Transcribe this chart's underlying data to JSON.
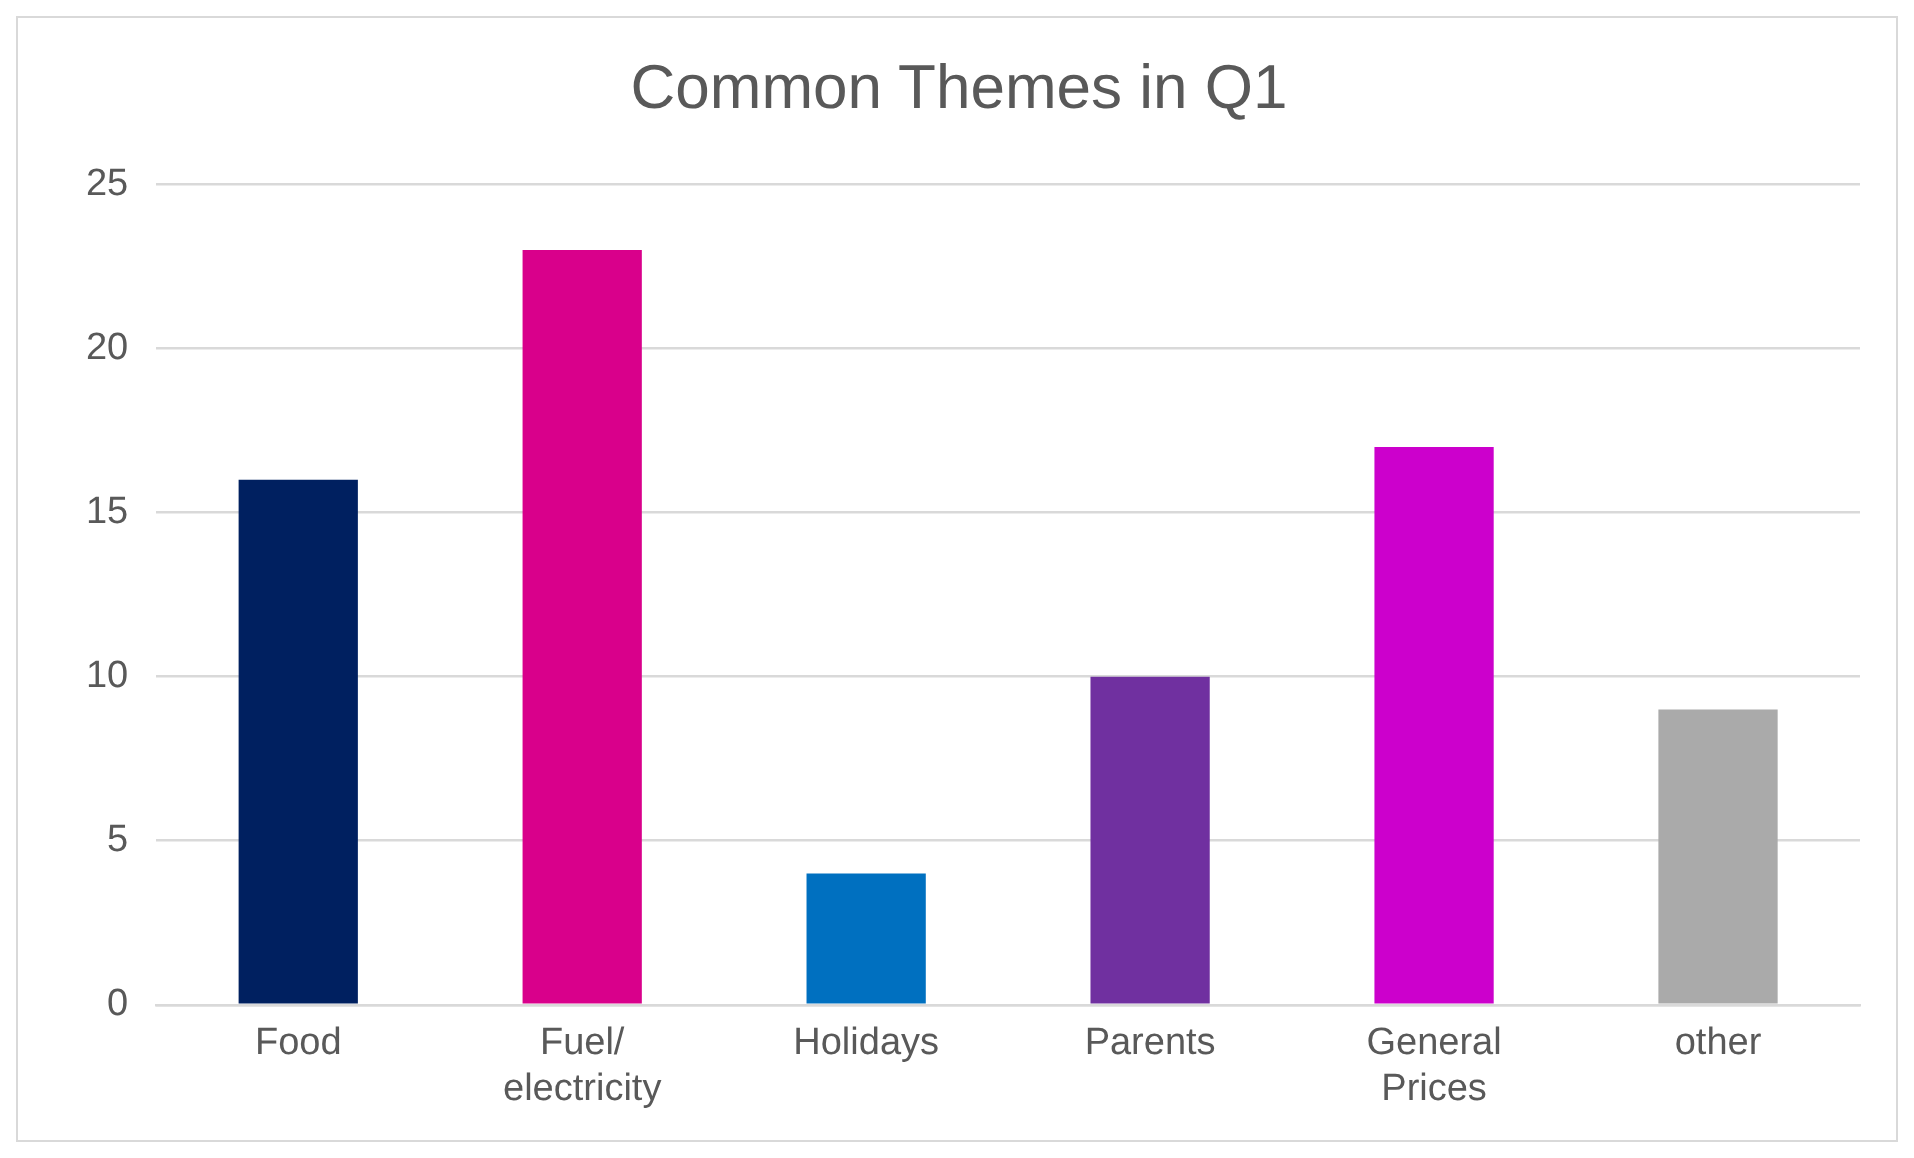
{
  "chart_data": {
    "type": "bar",
    "title": "Common Themes in Q1",
    "categories": [
      "Food",
      "Fuel/ electricity",
      "Holidays",
      "Parents",
      "General Prices",
      "other"
    ],
    "values": [
      16,
      23,
      4,
      10,
      17,
      9
    ],
    "colors": [
      "#002060",
      "#d9008b",
      "#0070c0",
      "#7030a0",
      "#cc00cc",
      "#aaaaaa"
    ],
    "ylim": [
      0,
      25
    ],
    "yticks": [
      0,
      5,
      10,
      15,
      20,
      25
    ],
    "grid": "y",
    "legend": false
  }
}
